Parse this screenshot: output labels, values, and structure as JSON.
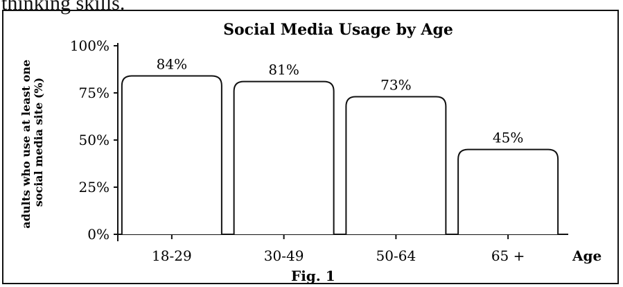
{
  "header_fragment": "thinking skills.",
  "figure_caption": "Fig. 1",
  "chart_data": {
    "type": "bar",
    "title": "Social Media Usage by Age",
    "ylabel": [
      "adults who use at least one",
      "social media site (%)"
    ],
    "xlabel": "Age",
    "categories": [
      "18-29",
      "30-49",
      "50-64",
      "65 +"
    ],
    "values": [
      84,
      81,
      73,
      45
    ],
    "value_labels": [
      "84%",
      "81%",
      "73%",
      "45%"
    ],
    "yticks": [
      0,
      25,
      50,
      75,
      100
    ],
    "ytick_labels": [
      "0%",
      "25%",
      "50%",
      "75%",
      "100%"
    ],
    "ylim": [
      0,
      100
    ],
    "grid": false,
    "colors": {
      "bar_fill": "#ffffff",
      "stroke": "#111111"
    }
  }
}
